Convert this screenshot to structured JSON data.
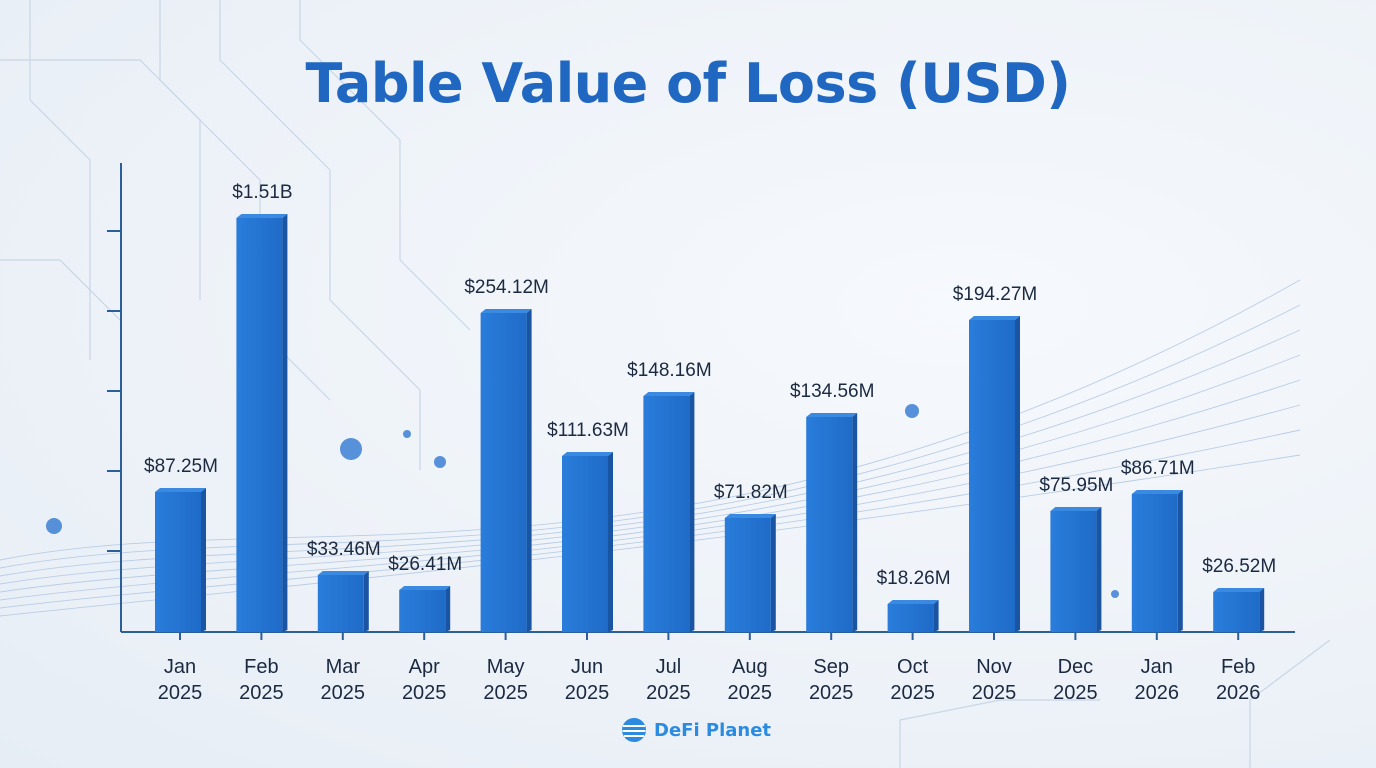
{
  "chart_data": {
    "type": "bar",
    "title": "Table Value of Loss (USD)",
    "xlabel": "",
    "ylabel": "",
    "grid": false,
    "categories": [
      [
        "Jan",
        "2025"
      ],
      [
        "Feb",
        "2025"
      ],
      [
        "Mar",
        "2025"
      ],
      [
        "Apr",
        "2025"
      ],
      [
        "May",
        "2025"
      ],
      [
        "Jun",
        "2025"
      ],
      [
        "Jul",
        "2025"
      ],
      [
        "Aug",
        "2025"
      ],
      [
        "Sep",
        "2025"
      ],
      [
        "Oct",
        "2025"
      ],
      [
        "Nov",
        "2025"
      ],
      [
        "Dec",
        "2025"
      ],
      [
        "Jan",
        "2026"
      ],
      [
        "Feb",
        "2026"
      ]
    ],
    "values_usd_millions": [
      87.25,
      1510,
      33.46,
      26.41,
      254.12,
      111.63,
      148.16,
      71.82,
      134.56,
      18.26,
      194.27,
      75.95,
      86.71,
      26.52
    ],
    "data_labels": [
      "$87.25M",
      "$1.51B",
      "$33.46M",
      "$26.41M",
      "$254.12M",
      "$111.63M",
      "$148.16M",
      "$71.82M",
      "$134.56M",
      "$18.26M",
      "$194.27M",
      "$75.95M",
      "$86.71M",
      "$26.52M"
    ],
    "bar_color": "#2272d0"
  },
  "branding": {
    "logo_text": "DeFi Planet"
  },
  "colors": {
    "title": "#1f67c0",
    "axis": "#2a5f9a"
  }
}
